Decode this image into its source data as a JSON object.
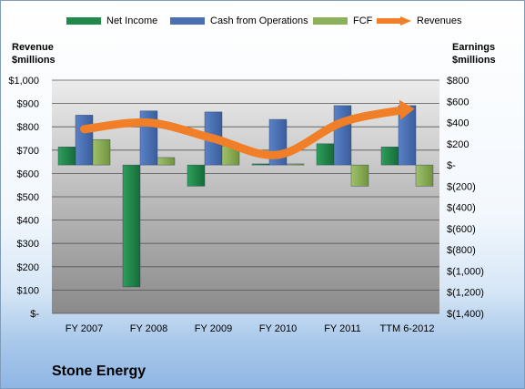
{
  "company": "Stone Energy",
  "colors": {
    "net_income": "#1f8a4c",
    "cash_from_operations": "#4a6fb5",
    "fcf": "#8db05a",
    "revenues": "#f07f28",
    "plot_top": "#e9e9e9",
    "plot_bottom": "#8a8a8a"
  },
  "legend": {
    "net_income": "Net Income",
    "cash_from_operations": "Cash from Operations",
    "fcf": "FCF",
    "revenues": "Revenues"
  },
  "left_axis_title": [
    "Revenue",
    "$millions"
  ],
  "right_axis_title": [
    "Earnings",
    "$millions"
  ],
  "chart_data": {
    "type": "bar",
    "categories": [
      "FY 2007",
      "FY 2008",
      "FY 2009",
      "FY 2010",
      "FY 2011",
      "TTM 6-2012"
    ],
    "series": [
      {
        "name": "Net Income",
        "axis": "right",
        "values": [
          170,
          -1150,
          -200,
          10,
          200,
          170
        ]
      },
      {
        "name": "Cash from Operations",
        "axis": "right",
        "values": [
          470,
          510,
          500,
          430,
          560,
          560
        ]
      },
      {
        "name": "FCF",
        "axis": "right",
        "values": [
          240,
          70,
          180,
          10,
          -200,
          -200
        ]
      },
      {
        "name": "Revenues",
        "axis": "left",
        "type": "line",
        "values": [
          790,
          818,
          750,
          680,
          820,
          875
        ]
      }
    ],
    "left_axis": {
      "ylim": [
        0,
        1000
      ],
      "ticks": [
        "$-",
        "$100",
        "$200",
        "$300",
        "$400",
        "$500",
        "$600",
        "$700",
        "$800",
        "$900",
        "$1,000"
      ]
    },
    "right_axis": {
      "ylim": [
        -1400,
        800
      ],
      "ticks": [
        "$(1,400)",
        "$(1,200)",
        "$(1,000)",
        "$(800)",
        "$(600)",
        "$(400)",
        "$(200)",
        "$-",
        "$200",
        "$400",
        "$600",
        "$800"
      ]
    },
    "grid": true,
    "legend_position": "top"
  }
}
